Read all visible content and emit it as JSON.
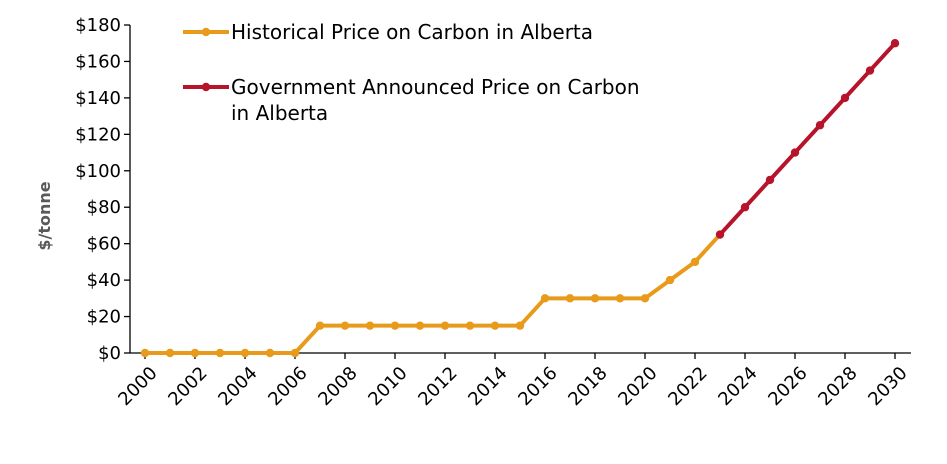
{
  "chart_data": {
    "type": "line",
    "title": "",
    "xlabel": "",
    "ylabel": "$/tonne",
    "ylim": [
      0,
      180
    ],
    "xlim": [
      2000,
      2030
    ],
    "y_ticks": [
      "$0",
      "$20",
      "$40",
      "$60",
      "$80",
      "$100",
      "$120",
      "$140",
      "$160",
      "$180"
    ],
    "x_ticks": [
      "2000",
      "2002",
      "2004",
      "2006",
      "2008",
      "2010",
      "2012",
      "2014",
      "2016",
      "2018",
      "2020",
      "2022",
      "2024",
      "2026",
      "2028",
      "2030"
    ],
    "grid": false,
    "legend_position": "top-left",
    "series": [
      {
        "name": "Historical Price on Carbon in Alberta",
        "legend_lines": [
          "Historical Price on Carbon in Alberta"
        ],
        "color": "#E89B1B",
        "x": [
          2000,
          2001,
          2002,
          2003,
          2004,
          2005,
          2006,
          2007,
          2008,
          2009,
          2010,
          2011,
          2012,
          2013,
          2014,
          2015,
          2016,
          2017,
          2018,
          2019,
          2020,
          2021,
          2022,
          2023
        ],
        "values": [
          0,
          0,
          0,
          0,
          0,
          0,
          0,
          15,
          15,
          15,
          15,
          15,
          15,
          15,
          15,
          15,
          30,
          30,
          30,
          30,
          30,
          40,
          50,
          65
        ]
      },
      {
        "name": "Government Announced Price on Carbon in Alberta",
        "legend_lines": [
          "Government Announced Price on Carbon",
          "in Alberta"
        ],
        "color": "#B7132B",
        "x": [
          2023,
          2024,
          2025,
          2026,
          2027,
          2028,
          2029,
          2030
        ],
        "values": [
          65,
          80,
          95,
          110,
          125,
          140,
          155,
          170
        ]
      }
    ]
  }
}
